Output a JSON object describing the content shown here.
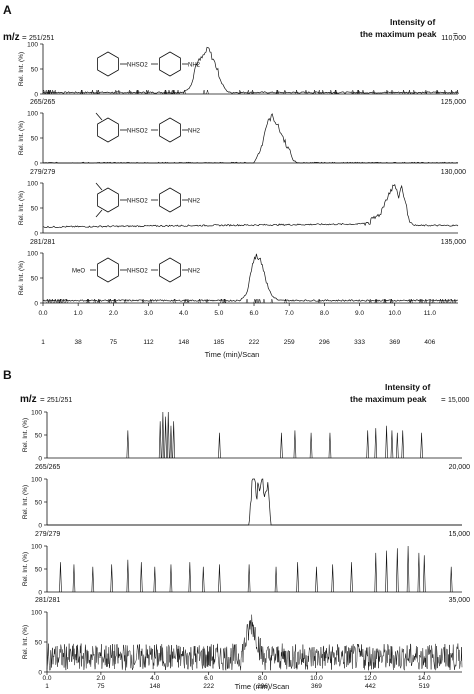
{
  "panel_A": {
    "letter": "A",
    "mz_label": "m/z",
    "eq": "=",
    "first_ion": "251/251",
    "intensity_line1": "Intensity of",
    "intensity_line2": "the maximum peak",
    "ylabel": "Rel. Int. (%)",
    "yticks": [
      "0",
      "50",
      "100"
    ],
    "xlabel": "Time (min)/Scan",
    "xticks_time": [
      "0.0",
      "1.0",
      "2.0",
      "3.0",
      "4.0",
      "5.0",
      "6.0",
      "7.0",
      "8.0",
      "9.0",
      "10.0",
      "11.0"
    ],
    "xticks_scan": [
      "1",
      "38",
      "75",
      "112",
      "148",
      "185",
      "222",
      "259",
      "296",
      "333",
      "369",
      "406"
    ],
    "structure_fragments": [
      "NHSO2",
      "NH2",
      "MeO"
    ],
    "traces": [
      {
        "ion": "251/251",
        "max_intensity": "110,000"
      },
      {
        "ion": "265/265",
        "max_intensity": "125,000"
      },
      {
        "ion": "279/279",
        "max_intensity": "130,000"
      },
      {
        "ion": "281/281",
        "max_intensity": "135,000"
      }
    ]
  },
  "panel_B": {
    "letter": "B",
    "mz_label": "m/z",
    "eq": "=",
    "first_ion": "251/251",
    "intensity_line1": "Intensity of",
    "intensity_line2": "the maximum peak",
    "ylabel": "Rel. Int. (%)",
    "yticks": [
      "0",
      "50",
      "100"
    ],
    "xlabel": "Time (min)/Scan",
    "xticks_time": [
      "0.0",
      "2.0",
      "4.0",
      "6.0",
      "8.0",
      "10.0",
      "12.0",
      "14.0"
    ],
    "xticks_scan": [
      "1",
      "75",
      "148",
      "222",
      "296",
      "369",
      "442",
      "519"
    ],
    "traces": [
      {
        "ion": "251/251",
        "max_intensity": "15,000"
      },
      {
        "ion": "265/265",
        "max_intensity": "20,000"
      },
      {
        "ion": "279/279",
        "max_intensity": "15,000"
      },
      {
        "ion": "281/281",
        "max_intensity": "35,000"
      }
    ]
  },
  "chart_data": [
    {
      "type": "line",
      "panel": "A",
      "xlabel": "Time (min)/Scan",
      "ylabel": "Rel. Int. (%)",
      "xlim": [
        0,
        11.8
      ],
      "ylim": [
        0,
        100
      ],
      "series": [
        {
          "name": "251/251",
          "x": [
            0,
            4.0,
            4.2,
            4.35,
            4.5,
            4.6,
            4.7,
            4.8,
            4.9,
            5.0,
            5.1,
            5.2,
            5.3,
            5.4,
            11.8
          ],
          "y": [
            3,
            3,
            15,
            60,
            70,
            80,
            92,
            75,
            60,
            40,
            20,
            8,
            3,
            3,
            3
          ]
        },
        {
          "name": "265/265",
          "x": [
            0,
            6.0,
            6.2,
            6.35,
            6.5,
            6.6,
            6.7,
            6.8,
            6.9,
            7.0,
            7.1,
            7.2,
            11.8
          ],
          "y": [
            0,
            0,
            30,
            75,
            95,
            85,
            70,
            55,
            40,
            25,
            8,
            0,
            0
          ]
        },
        {
          "name": "279/279",
          "x": [
            0,
            9.0,
            9.3,
            9.6,
            9.8,
            10.0,
            10.1,
            10.2,
            10.3,
            10.45,
            10.6,
            11.8
          ],
          "y": [
            12,
            18,
            22,
            40,
            75,
            98,
            70,
            95,
            60,
            20,
            15,
            15
          ]
        },
        {
          "name": "281/281",
          "x": [
            0,
            5.6,
            5.8,
            5.95,
            6.05,
            6.15,
            6.25,
            6.35,
            6.5,
            6.7,
            11.8
          ],
          "y": [
            5,
            5,
            20,
            75,
            95,
            90,
            75,
            45,
            15,
            5,
            5
          ]
        }
      ]
    },
    {
      "type": "line",
      "panel": "B",
      "xlabel": "Time (min)/Scan",
      "ylabel": "Rel. Int. (%)",
      "xlim": [
        0,
        15.4
      ],
      "ylim": [
        0,
        100
      ],
      "series": [
        {
          "name": "251/251",
          "spikes_x": [
            3.0,
            4.2,
            4.3,
            4.4,
            4.5,
            4.6,
            4.7,
            6.4,
            8.7,
            9.2,
            9.8,
            10.5,
            11.9,
            12.2,
            12.6,
            12.8,
            13.0,
            13.2,
            13.9
          ],
          "spikes_y": [
            60,
            80,
            100,
            90,
            100,
            70,
            80,
            55,
            55,
            60,
            55,
            55,
            60,
            65,
            70,
            60,
            55,
            60,
            55
          ]
        },
        {
          "name": "265/265",
          "x": [
            0,
            7.5,
            7.6,
            7.7,
            7.8,
            7.9,
            8.0,
            8.1,
            8.2,
            8.3,
            15.4
          ],
          "y": [
            0,
            0,
            80,
            100,
            70,
            100,
            90,
            60,
            80,
            0,
            0
          ]
        },
        {
          "name": "279/279",
          "spikes_x": [
            0.5,
            1.0,
            1.7,
            2.4,
            3.0,
            3.5,
            4.0,
            4.6,
            5.3,
            5.8,
            6.4,
            7.5,
            8.5,
            9.3,
            10.0,
            10.6,
            11.3,
            12.2,
            12.6,
            13.0,
            13.4,
            13.8,
            14.0,
            15.0
          ],
          "spikes_y": [
            65,
            60,
            55,
            60,
            70,
            65,
            55,
            60,
            65,
            55,
            60,
            60,
            55,
            65,
            55,
            60,
            65,
            85,
            90,
            95,
            100,
            85,
            80,
            55
          ]
        },
        {
          "name": "281/281",
          "baseline_mean": 25,
          "peak_x": 7.6,
          "peak_y": 100
        }
      ]
    }
  ]
}
